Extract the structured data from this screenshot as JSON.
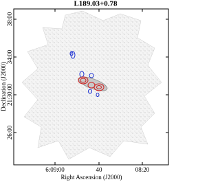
{
  "title": "L189.03+0.78",
  "x_axis": {
    "label": "Right Ascension (J2000)",
    "ticks": [
      "6:09:00",
      "40",
      "08:20"
    ]
  },
  "y_axis": {
    "label": "Declination (J2000)",
    "ticks": [
      "38:00",
      "34:00",
      "21:30:00",
      "26:00"
    ]
  }
}
